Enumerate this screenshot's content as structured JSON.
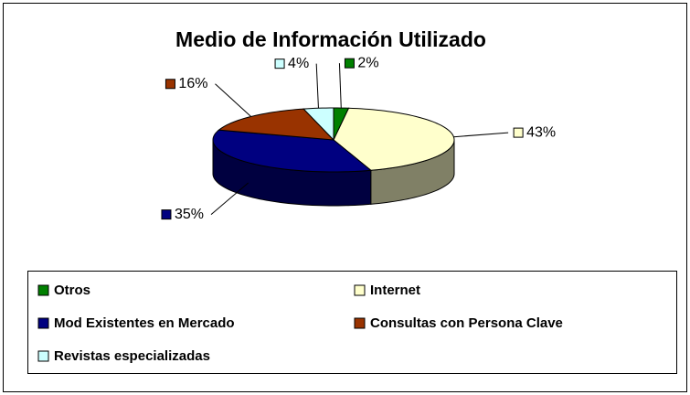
{
  "chart_data": {
    "type": "pie3d",
    "title": "Medio de Información Utilizado",
    "categories": [
      "Otros",
      "Internet",
      "Mod Existentes en Mercado",
      "Consultas con Persona Clave",
      "Revistas especializadas"
    ],
    "values": [
      2,
      43,
      35,
      16,
      4
    ],
    "value_labels": [
      "2%",
      "43%",
      "35%",
      "16%",
      "4%"
    ],
    "colors": [
      "#008000",
      "#FFFFCC",
      "#000080",
      "#993300",
      "#CCFFFF"
    ],
    "legend": "bottom"
  }
}
